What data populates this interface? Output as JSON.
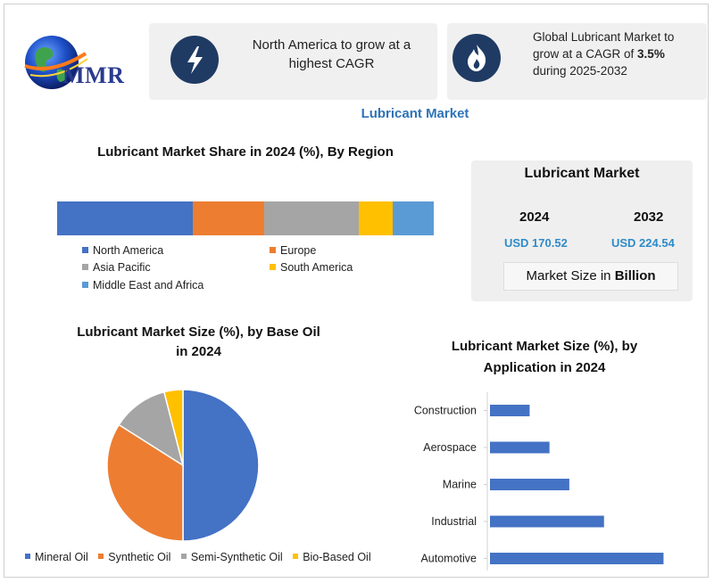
{
  "header": {
    "logo_text": "MMR",
    "card1_text": "North America to grow at a highest CAGR",
    "card2_text_pre": "Global Lubricant Market to grow at a CAGR of ",
    "card2_text_bold": "3.5%",
    "card2_text_post": " during 2025-2032",
    "card1_icon": "lightning-bolt-icon",
    "card2_icon": "flame-icon",
    "page_title": "Lubricant Market"
  },
  "market_box": {
    "title": "Lubricant Market",
    "year_a": "2024",
    "year_b": "2032",
    "value_a": "USD 170.52",
    "value_b": "USD 224.54",
    "size_label_pre": "Market Size in ",
    "size_label_bold": "Billion"
  },
  "colors": {
    "blue": "#4472c4",
    "orange": "#ed7d31",
    "gray": "#a5a5a5",
    "yellow": "#ffc000",
    "lightblue": "#5b9bd5"
  },
  "chart_data": [
    {
      "type": "bar",
      "orientation": "stacked-horizontal",
      "title": "Lubricant Market Share in 2024 (%), By Region",
      "series": [
        {
          "name": "North America",
          "value": 36,
          "color": "#4472c4"
        },
        {
          "name": "Europe",
          "value": 19,
          "color": "#ed7d31"
        },
        {
          "name": "Asia Pacific",
          "value": 25,
          "color": "#a5a5a5"
        },
        {
          "name": "South America",
          "value": 9,
          "color": "#ffc000"
        },
        {
          "name": "Middle East and Africa",
          "value": 11,
          "color": "#5b9bd5"
        }
      ],
      "legend_placement": "bottom"
    },
    {
      "type": "pie",
      "title_line1": "Lubricant Market Size (%), by Base Oil",
      "title_line2": "in 2024",
      "slices": [
        {
          "name": "Mineral Oil",
          "value": 50,
          "color": "#4472c4"
        },
        {
          "name": "Synthetic Oil",
          "value": 34,
          "color": "#ed7d31"
        },
        {
          "name": "Semi-Synthetic Oil",
          "value": 12,
          "color": "#a5a5a5"
        },
        {
          "name": "Bio-Based Oil",
          "value": 4,
          "color": "#ffc000"
        }
      ],
      "legend_placement": "bottom"
    },
    {
      "type": "bar",
      "orientation": "horizontal",
      "title_line1": "Lubricant Market Size (%), by",
      "title_line2": "Application in 2024",
      "categories": [
        "Construction",
        "Aerospace",
        "Marine",
        "Industrial",
        "Automotive"
      ],
      "values": [
        8,
        12,
        16,
        23,
        35
      ],
      "color": "#4472c4",
      "grid": false
    }
  ]
}
